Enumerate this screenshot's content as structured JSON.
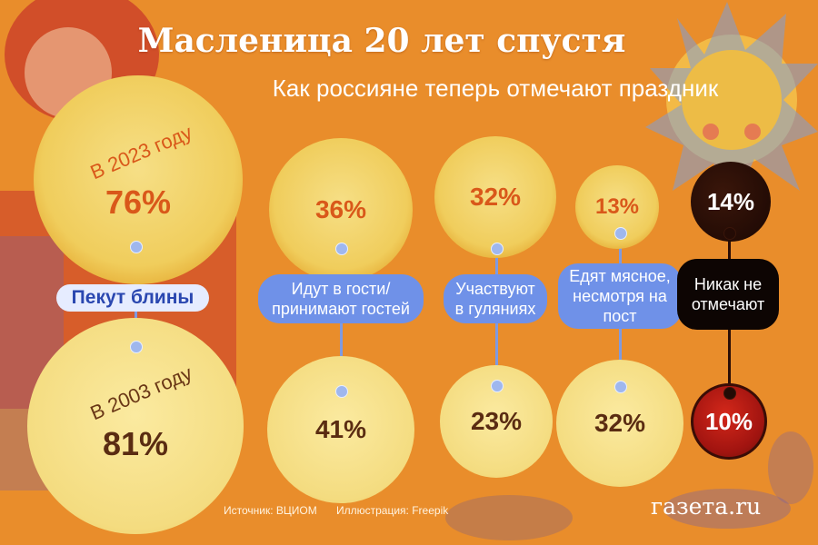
{
  "title": "Масленица 20 лет спустя",
  "subtitle": "Как россияне теперь отмечают праздник",
  "year_2023_label": "В 2023 году",
  "year_2003_label": "В 2003 году",
  "source": "Источник: ВЦИОМ",
  "illustration": "Иллюстрация: Freepik",
  "brand": "газета.ru",
  "colors": {
    "background": "#e98d2b",
    "pancake": "#f4dc80",
    "label_blue": "#6f91e8",
    "top_text": "#d9581a",
    "bottom_text": "#5a2c12",
    "none_dark": "#1a0703",
    "none_red": "#b0160f"
  },
  "chart_data": {
    "type": "bar",
    "title": "Масленица 20 лет спустя",
    "subtitle": "Как россияне теперь отмечают праздник",
    "categories": [
      "Пекут блины",
      "Идут в гости/ принимают гостей",
      "Участвуют в гуляниях",
      "Едят мясное, несмотря на пост",
      "Никак не отмечают"
    ],
    "series": [
      {
        "name": "В 2023 году",
        "values": [
          76,
          36,
          32,
          13,
          14
        ],
        "labels": [
          "76%",
          "36%",
          "32%",
          "13%",
          "14%"
        ]
      },
      {
        "name": "В 2003 году",
        "values": [
          81,
          41,
          23,
          32,
          10
        ],
        "labels": [
          "81%",
          "41%",
          "23%",
          "32%",
          "10%"
        ]
      }
    ],
    "unit": "%"
  }
}
